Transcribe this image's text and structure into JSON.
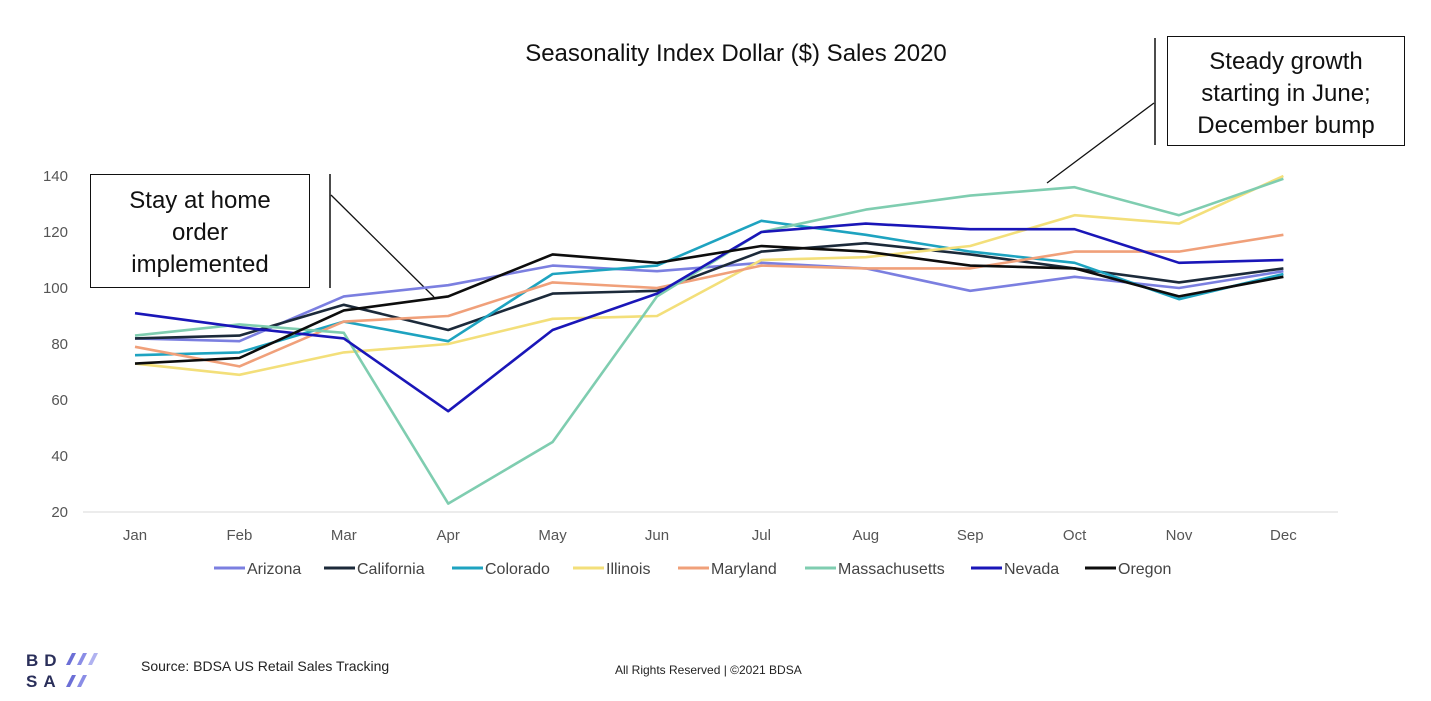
{
  "chart_data": {
    "type": "line",
    "title": "Seasonality Index Dollar ($) Sales 2020",
    "xlabel": "",
    "ylabel": "",
    "categories": [
      "Jan",
      "Feb",
      "Mar",
      "Apr",
      "May",
      "Jun",
      "Jul",
      "Aug",
      "Sep",
      "Oct",
      "Nov",
      "Dec"
    ],
    "ylim": [
      20,
      140
    ],
    "yticks": [
      20,
      40,
      60,
      80,
      100,
      120,
      140
    ],
    "grid": "bottom axis line only",
    "legend": "bottom",
    "series": [
      {
        "name": "Arizona",
        "color": "#7b7fe0",
        "values": [
          82,
          81,
          97,
          101,
          108,
          106,
          109,
          107,
          99,
          104,
          100,
          106
        ]
      },
      {
        "name": "California",
        "color": "#1c2a3a",
        "values": [
          82,
          83,
          94,
          85,
          98,
          99,
          113,
          116,
          112,
          107,
          102,
          107
        ]
      },
      {
        "name": "Colorado",
        "color": "#1ea3c0",
        "values": [
          76,
          77,
          88,
          81,
          105,
          108,
          124,
          119,
          113,
          109,
          96,
          105
        ]
      },
      {
        "name": "Illinois",
        "color": "#f3df7a",
        "values": [
          73,
          69,
          77,
          80,
          89,
          90,
          110,
          111,
          115,
          126,
          123,
          140
        ]
      },
      {
        "name": "Maryland",
        "color": "#f0a07a",
        "values": [
          79,
          72,
          88,
          90,
          102,
          100,
          108,
          107,
          107,
          113,
          113,
          119
        ]
      },
      {
        "name": "Massachusetts",
        "color": "#7fcdb0",
        "values": [
          83,
          87,
          84,
          23,
          45,
          97,
          120,
          128,
          133,
          136,
          126,
          139
        ]
      },
      {
        "name": "Nevada",
        "color": "#1a16b8",
        "values": [
          91,
          86,
          82,
          56,
          85,
          98,
          120,
          123,
          121,
          121,
          109,
          110
        ]
      },
      {
        "name": "Oregon",
        "color": "#0d0d0d",
        "values": [
          73,
          75,
          92,
          97,
          112,
          109,
          115,
          113,
          108,
          107,
          97,
          104
        ]
      }
    ],
    "annotations": [
      {
        "text": "Stay at home order implemented"
      },
      {
        "text": "Steady growth starting in June; December bump"
      }
    ]
  },
  "annotations": {
    "stay_home_lines": [
      "Stay at home",
      "order",
      "implemented"
    ],
    "growth_lines": [
      "Steady growth",
      "starting in June;",
      "December bump"
    ]
  },
  "footer": {
    "logo_top": "BD",
    "logo_bottom": "SA",
    "source": "Source: BDSA US Retail Sales Tracking",
    "rights": "All Rights Reserved | ©2021 BDSA"
  }
}
